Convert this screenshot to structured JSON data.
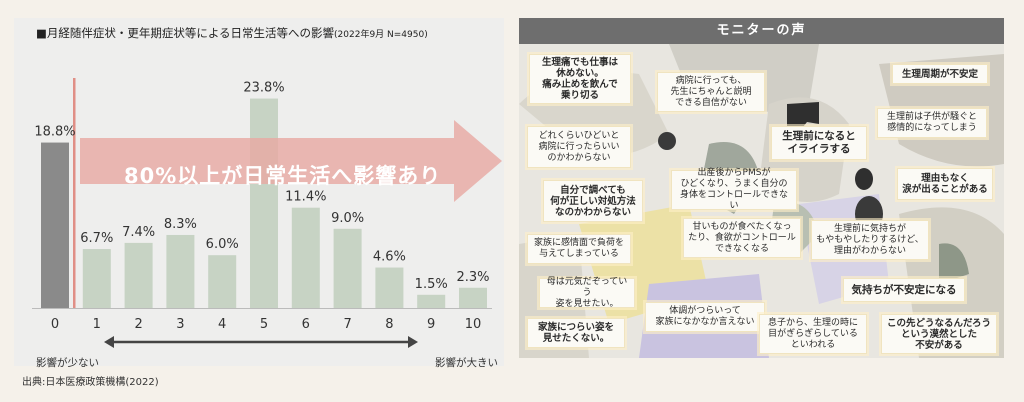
{
  "left_panel": {
    "title": "■月経随伴症状・更年期症状等による日常生活等への影響",
    "title_note": "(2022年9月 N=4950)",
    "callout": "80%以上が日常生活へ影響あり",
    "axis_low_label": "影響が少ない",
    "axis_high_label": "影響が大きい",
    "source": "出典:日本医療政策機構(2022)"
  },
  "chart_data": {
    "type": "bar",
    "categories": [
      "0",
      "1",
      "2",
      "3",
      "4",
      "5",
      "6",
      "7",
      "8",
      "9",
      "10"
    ],
    "values": [
      18.8,
      6.7,
      7.4,
      8.3,
      6.0,
      23.8,
      11.4,
      9.0,
      4.6,
      1.5,
      2.3
    ],
    "value_labels": [
      "18.8%",
      "6.7%",
      "7.4%",
      "8.3%",
      "6.0%",
      "23.8%",
      "11.4%",
      "9.0%",
      "4.6%",
      "1.5%",
      "2.3%"
    ],
    "ylim": [
      0,
      25
    ],
    "colors": {
      "zero": "#8a8a8a",
      "other": "#c7d3c4",
      "divider": "#e08f86",
      "arrow": "#e8aaa4"
    }
  },
  "right_panel": {
    "header": "モニターの声",
    "voices": [
      {
        "id": "v1",
        "text": "生理痛でも仕事は\n休めない。\n痛み止めを飲んで\n乗り切る",
        "style": "bold"
      },
      {
        "id": "v2",
        "text": "病院に行っても、\n先生にちゃんと説明\nできる自信がない",
        "style": "normal"
      },
      {
        "id": "v3",
        "text": "生理周期が不安定",
        "style": "bold"
      },
      {
        "id": "v4",
        "text": "生理前は子供が騒ぐと\n感情的になってしまう",
        "style": "normal"
      },
      {
        "id": "v5",
        "text": "どれくらいひどいと\n病院に行ったらいい\nのかわからない",
        "style": "normal"
      },
      {
        "id": "v6",
        "text": "生理前になると\nイライラする",
        "style": "big"
      },
      {
        "id": "v7",
        "text": "自分で調べても\n何が正しい対処方法\nなのかわからない",
        "style": "bold"
      },
      {
        "id": "v8",
        "text": "出産後からPMSが\nひどくなり、うまく自分の\n身体をコントロールできない",
        "style": "normal"
      },
      {
        "id": "v9",
        "text": "理由もなく\n涙が出ることがある",
        "style": "bold"
      },
      {
        "id": "v10",
        "text": "家族に感情面で負荷を\n与えてしまっている",
        "style": "normal"
      },
      {
        "id": "v11",
        "text": "甘いものが食べたくなっ\nたり、食欲がコントロール\nできなくなる",
        "style": "normal"
      },
      {
        "id": "v12",
        "text": "生理前に気持ちが\nもやもやしたりするけど、\n理由がわからない",
        "style": "normal"
      },
      {
        "id": "v13",
        "text": "母は元気だぞっていう\n姿を見せたい。",
        "style": "normal"
      },
      {
        "id": "v14",
        "text": "気持ちが不安定になる",
        "style": "big"
      },
      {
        "id": "v15",
        "text": "体調がつらいって\n家族になかなか言えない",
        "style": "normal"
      },
      {
        "id": "v16",
        "text": "家族につらい姿を\n見せたくない。",
        "style": "bold"
      },
      {
        "id": "v17",
        "text": "息子から、生理の時に\n目がぎらぎらしている\nといわれる",
        "style": "normal"
      },
      {
        "id": "v18",
        "text": "この先どうなるんだろう\nという漠然とした\n不安がある",
        "style": "bold"
      }
    ]
  }
}
